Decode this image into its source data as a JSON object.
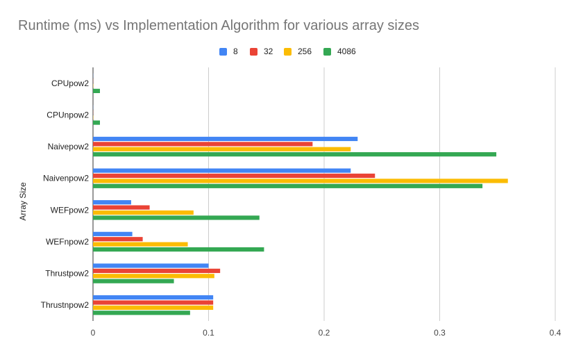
{
  "chart_data": {
    "type": "bar",
    "orientation": "horizontal",
    "title": "Runtime (ms) vs Implementation Algorithm for various array sizes",
    "xlabel": "",
    "ylabel": "Array Size",
    "categories": [
      "CPUpow2",
      "CPUnpow2",
      "Naivepow2",
      "Naivenpow2",
      "WEFpow2",
      "WEFnpow2",
      "Thrustpow2",
      "Thrustnpow2"
    ],
    "series": [
      {
        "name": "8",
        "color": "#4285f4",
        "values": [
          0.0001,
          0.0001,
          0.229,
          0.223,
          0.033,
          0.034,
          0.1,
          0.104
        ]
      },
      {
        "name": "32",
        "color": "#ea4335",
        "values": [
          0.0001,
          0.0001,
          0.19,
          0.244,
          0.049,
          0.043,
          0.11,
          0.104
        ]
      },
      {
        "name": "256",
        "color": "#fbbc04",
        "values": [
          0.0002,
          0.0002,
          0.223,
          0.359,
          0.087,
          0.082,
          0.105,
          0.104
        ]
      },
      {
        "name": "4086",
        "color": "#34a853",
        "values": [
          0.006,
          0.006,
          0.349,
          0.337,
          0.144,
          0.148,
          0.07,
          0.084
        ]
      }
    ],
    "xlim": [
      0,
      0.4
    ],
    "xticks": [
      "0",
      "0.1",
      "0.2",
      "0.3",
      "0.4"
    ],
    "grid": true,
    "legend_position": "top"
  }
}
